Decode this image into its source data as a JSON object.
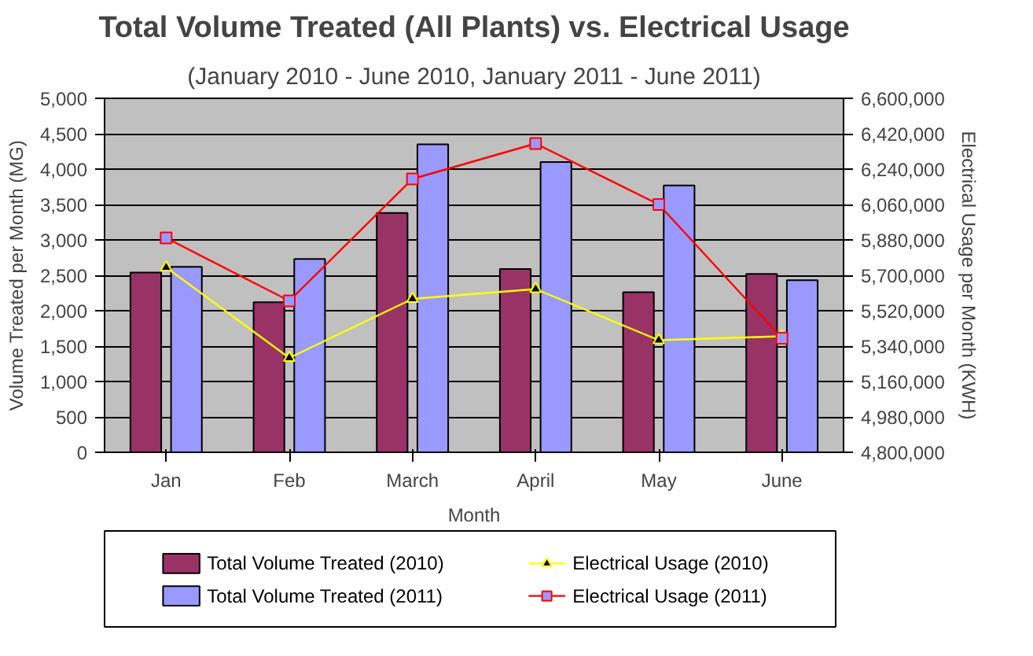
{
  "chart_data": {
    "type": "bar",
    "title": "Total Volume Treated (All Plants) vs. Electrical Usage",
    "subtitle": "(January 2010 - June 2010, January 2011 - June 2011)",
    "xlabel": "Month",
    "ylabel": "Volume Treated per Month (MG)",
    "y2label": "Electrical Usage per Month (KWH)",
    "categories": [
      "Jan",
      "Feb",
      "March",
      "April",
      "May",
      "June"
    ],
    "series": [
      {
        "name": "Total Volume Treated (2010)",
        "color": "#993366",
        "values": [
          2540,
          2120,
          3380,
          2590,
          2260,
          2520
        ]
      },
      {
        "name": "Total Volume Treated (2011)",
        "color": "#9999ff",
        "values": [
          2620,
          2730,
          4350,
          4100,
          3770,
          2430
        ]
      },
      {
        "name": "Electrical Usage (2010)",
        "type": "line",
        "axis": "y2",
        "marker": "triangle",
        "color": "#ffff00",
        "values": [
          5740000,
          5280000,
          5580000,
          5630000,
          5370000,
          5390000
        ]
      },
      {
        "name": "Electrical Usage (2011)",
        "type": "line",
        "axis": "y2",
        "marker": "square",
        "color": "#ff0000",
        "values": [
          5890000,
          5570000,
          6190000,
          6370000,
          6060000,
          5380000
        ]
      }
    ],
    "ylim": [
      0,
      5000
    ],
    "yticks": [
      0,
      500,
      {
        "value": 1000,
        "label": "1,000"
      },
      {
        "value": 1500,
        "label": "1,500"
      },
      {
        "value": 2000,
        "label": "2,000"
      },
      {
        "value": 2500,
        "label": "2,500"
      },
      {
        "value": 3000,
        "label": "3,000"
      },
      {
        "value": 3500,
        "label": "3,500"
      },
      {
        "value": 4000,
        "label": "4,000"
      },
      {
        "value": 4500,
        "label": "4,500"
      },
      {
        "value": 5000,
        "label": "5,000"
      }
    ],
    "y2lim": [
      4800000,
      6600000
    ],
    "y2ticks": [
      {
        "value": 4800000,
        "label": "4,800,000"
      },
      {
        "value": 4980000,
        "label": "4,980,000"
      },
      {
        "value": 5160000,
        "label": "5,160,000"
      },
      {
        "value": 5340000,
        "label": "5,340,000"
      },
      {
        "value": 5520000,
        "label": "5,520,000"
      },
      {
        "value": 5700000,
        "label": "5,700,000"
      },
      {
        "value": 5880000,
        "label": "5,880,000"
      },
      {
        "value": 6060000,
        "label": "6,060,000"
      },
      {
        "value": 6240000,
        "label": "6,240,000"
      },
      {
        "value": 6420000,
        "label": "6,420,000"
      },
      {
        "value": 6600000,
        "label": "6,600,000"
      }
    ],
    "grid": "y",
    "legend": "bottom"
  }
}
